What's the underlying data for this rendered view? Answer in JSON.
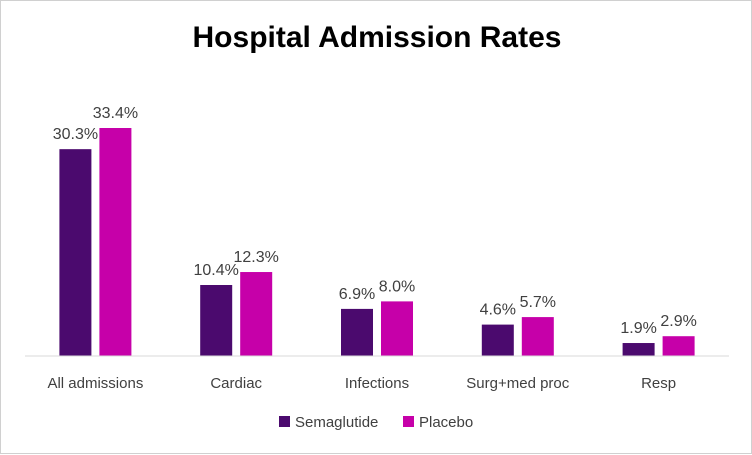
{
  "chart_data": {
    "type": "bar",
    "title": "Hospital Admission Rates",
    "categories": [
      "All admissions",
      "Cardiac",
      "Infections",
      "Surg+med proc",
      "Resp"
    ],
    "series": [
      {
        "name": "Semaglutide",
        "color": "#4B0A6E",
        "values": [
          30.3,
          10.4,
          6.9,
          4.6,
          1.9
        ],
        "labels": [
          "30.3%",
          "10.4%",
          "6.9%",
          "4.6%",
          "1.9%"
        ]
      },
      {
        "name": "Placebo",
        "color": "#C600A9",
        "values": [
          33.4,
          12.3,
          8.0,
          5.7,
          2.9
        ],
        "labels": [
          "33.4%",
          "12.3%",
          "8.0%",
          "5.7%",
          "2.9%"
        ]
      }
    ],
    "ylim": [
      0,
      40
    ],
    "grid": false,
    "legend": "bottom"
  }
}
